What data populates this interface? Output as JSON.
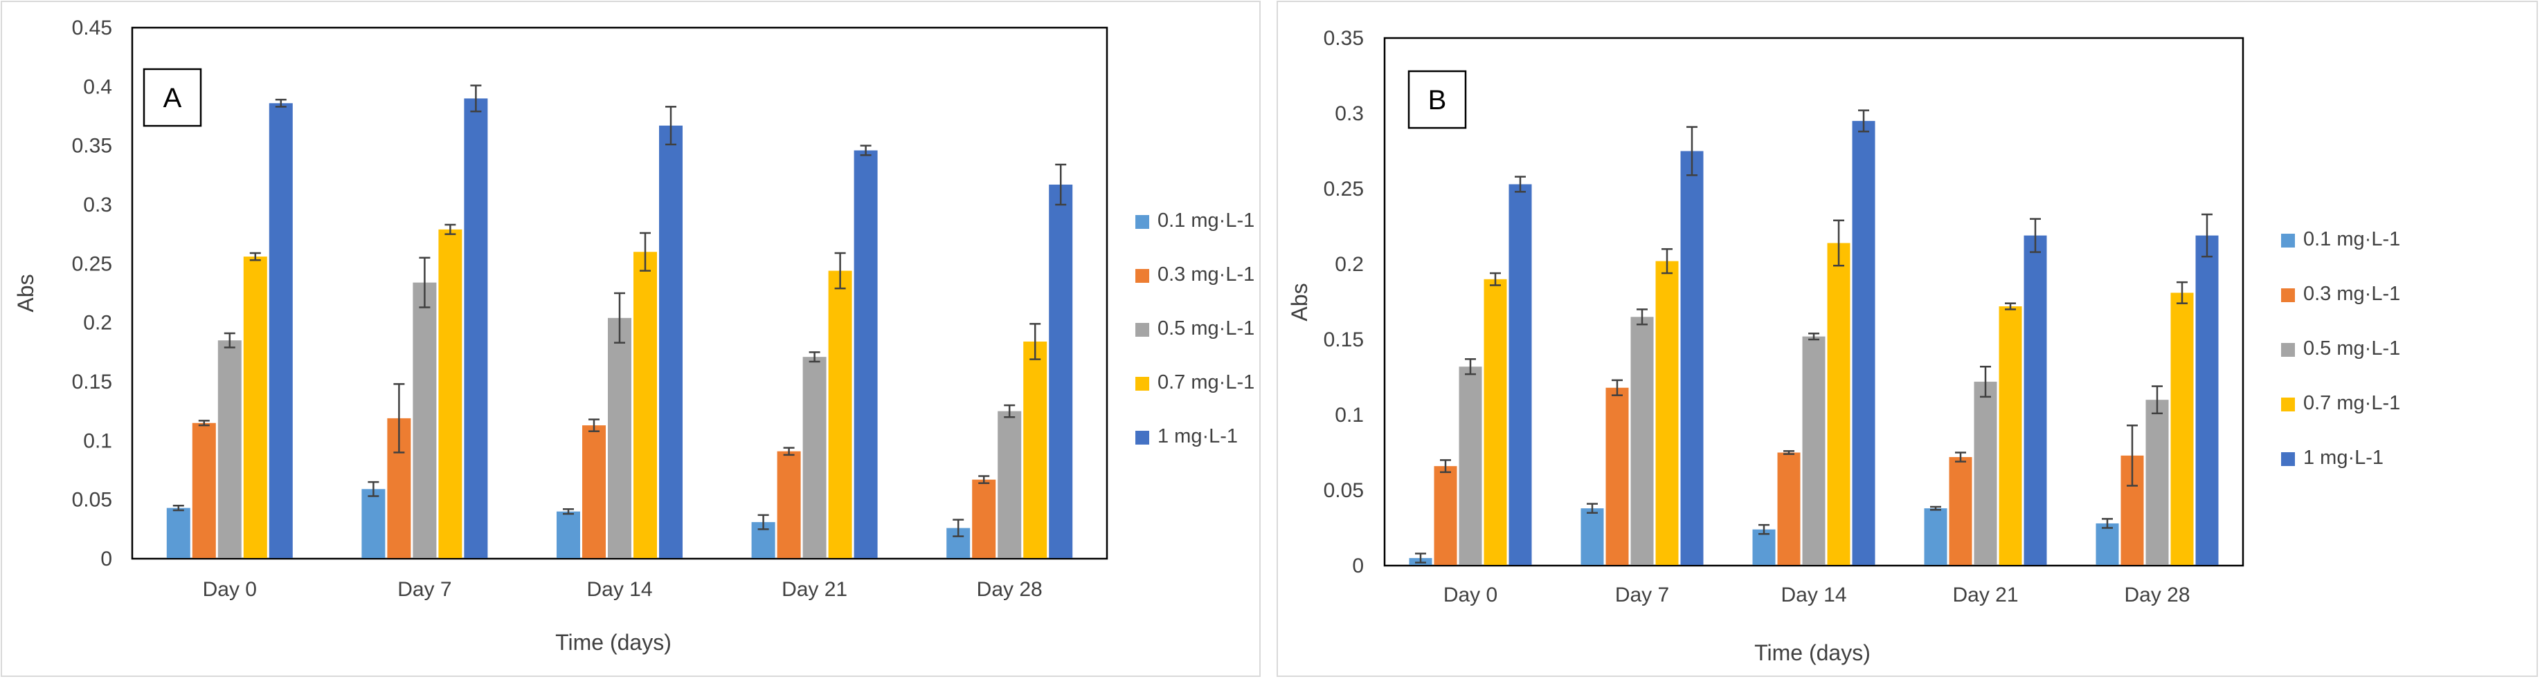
{
  "colors": {
    "0.1 mg·L-1": "#5b9bd5",
    "0.3 mg·L-1": "#ed7d31",
    "0.5 mg·L-1": "#a5a5a5",
    "0.7 mg·L-1": "#ffc000",
    "1 mg·L-1": "#4472c4"
  },
  "chart_data": [
    {
      "panel": "A",
      "type": "bar",
      "title": "",
      "xlabel": "Time (days)",
      "ylabel": "Abs",
      "categories": [
        "Day 0",
        "Day 7",
        "Day 14",
        "Day 21",
        "Day 28"
      ],
      "ylim": [
        0,
        0.45
      ],
      "yticks": [
        0,
        0.05,
        0.1,
        0.15,
        0.2,
        0.25,
        0.3,
        0.35,
        0.4,
        0.45
      ],
      "ytick_labels": [
        "0",
        "0.05",
        "0.1",
        "0.15",
        "0.2",
        "0.25",
        "0.3",
        "0.35",
        "0.4",
        "0.45"
      ],
      "legend_position": "right",
      "grid": false,
      "series": [
        {
          "name": "0.1 mg·L-1",
          "values": [
            0.043,
            0.059,
            0.04,
            0.031,
            0.026
          ],
          "errors": [
            0.002,
            0.006,
            0.002,
            0.006,
            0.007
          ]
        },
        {
          "name": "0.3 mg·L-1",
          "values": [
            0.115,
            0.119,
            0.113,
            0.091,
            0.067
          ],
          "errors": [
            0.002,
            0.029,
            0.005,
            0.003,
            0.003
          ]
        },
        {
          "name": "0.5 mg·L-1",
          "values": [
            0.185,
            0.234,
            0.204,
            0.171,
            0.125
          ],
          "errors": [
            0.006,
            0.021,
            0.021,
            0.004,
            0.005
          ]
        },
        {
          "name": "0.7 mg·L-1",
          "values": [
            0.256,
            0.279,
            0.26,
            0.244,
            0.184
          ],
          "errors": [
            0.003,
            0.004,
            0.016,
            0.015,
            0.015
          ]
        },
        {
          "name": "1 mg·L-1",
          "values": [
            0.386,
            0.39,
            0.367,
            0.346,
            0.317
          ],
          "errors": [
            0.003,
            0.011,
            0.016,
            0.004,
            0.017
          ]
        }
      ]
    },
    {
      "panel": "B",
      "type": "bar",
      "title": "",
      "xlabel": "Time (days)",
      "ylabel": "Abs",
      "categories": [
        "Day 0",
        "Day 7",
        "Day 14",
        "Day 21",
        "Day 28"
      ],
      "ylim": [
        0,
        0.35
      ],
      "yticks": [
        0,
        0.05,
        0.1,
        0.15,
        0.2,
        0.25,
        0.3,
        0.35
      ],
      "ytick_labels": [
        "0",
        "0.05",
        "0.1",
        "0.15",
        "0.2",
        "0.25",
        "0.3",
        "0.35"
      ],
      "legend_position": "right",
      "grid": false,
      "series": [
        {
          "name": "0.1 mg·L-1",
          "values": [
            0.005,
            0.038,
            0.024,
            0.038,
            0.028
          ],
          "errors": [
            0.003,
            0.003,
            0.003,
            0.001,
            0.003
          ]
        },
        {
          "name": "0.3 mg·L-1",
          "values": [
            0.066,
            0.118,
            0.075,
            0.072,
            0.073
          ],
          "errors": [
            0.004,
            0.005,
            0.001,
            0.003,
            0.02
          ]
        },
        {
          "name": "0.5 mg·L-1",
          "values": [
            0.132,
            0.165,
            0.152,
            0.122,
            0.11
          ],
          "errors": [
            0.005,
            0.005,
            0.002,
            0.01,
            0.009
          ]
        },
        {
          "name": "0.7 mg·L-1",
          "values": [
            0.19,
            0.202,
            0.214,
            0.172,
            0.181
          ],
          "errors": [
            0.004,
            0.008,
            0.015,
            0.002,
            0.007
          ]
        },
        {
          "name": "1 mg·L-1",
          "values": [
            0.253,
            0.275,
            0.295,
            0.219,
            0.219
          ],
          "errors": [
            0.005,
            0.016,
            0.007,
            0.011,
            0.014
          ]
        }
      ]
    }
  ]
}
